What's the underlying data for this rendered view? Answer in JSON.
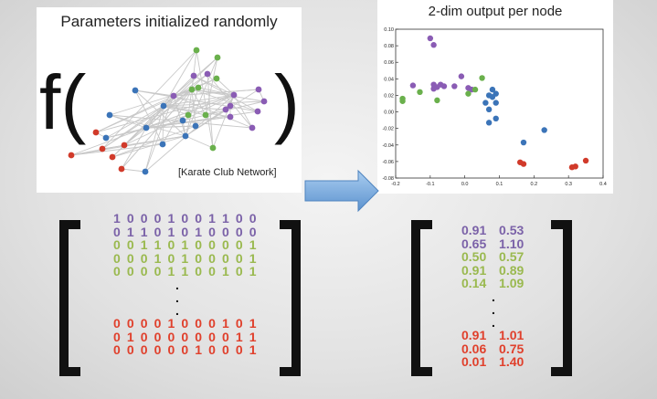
{
  "left_panel": {
    "title": "Parameters initialized randomly",
    "function_open": "f(",
    "function_close": ")",
    "caption": "[Karate Club Network]",
    "node_colors": {
      "purple": "#8a5cb4",
      "green": "#6ab04c",
      "blue": "#3b74b8",
      "red": "#d13a2a"
    }
  },
  "right_panel": {
    "title": "2-dim output per node"
  },
  "chart_data": {
    "type": "scatter",
    "title": "2-dim output per node",
    "xlim": [
      -0.2,
      0.4
    ],
    "ylim": [
      -0.08,
      0.1
    ],
    "xticks": [
      "-0.2",
      "-0.1",
      "0.0",
      "0.1",
      "0.2",
      "0.3",
      "0.4"
    ],
    "yticks": [
      "0.10",
      "0.08",
      "0.06",
      "0.04",
      "0.02",
      "0.00",
      "-0.02",
      "-0.04",
      "-0.06",
      "-0.08"
    ],
    "series": [
      {
        "color": "#8a5cb4",
        "points": [
          [
            -0.1,
            0.089
          ],
          [
            -0.09,
            0.081
          ],
          [
            -0.15,
            0.032
          ],
          [
            -0.09,
            0.033
          ],
          [
            -0.08,
            0.03
          ],
          [
            -0.07,
            0.033
          ],
          [
            -0.06,
            0.031
          ],
          [
            -0.01,
            0.043
          ],
          [
            -0.03,
            0.031
          ],
          [
            0.01,
            0.029
          ],
          [
            -0.09,
            0.028
          ],
          [
            0.02,
            0.027
          ]
        ]
      },
      {
        "color": "#6ab04c",
        "points": [
          [
            -0.18,
            0.016
          ],
          [
            -0.18,
            0.013
          ],
          [
            -0.13,
            0.024
          ],
          [
            -0.08,
            0.014
          ],
          [
            0.01,
            0.022
          ],
          [
            0.05,
            0.041
          ],
          [
            0.03,
            0.027
          ]
        ]
      },
      {
        "color": "#3b74b8",
        "points": [
          [
            0.07,
            0.02
          ],
          [
            0.06,
            0.011
          ],
          [
            0.08,
            0.027
          ],
          [
            0.09,
            0.022
          ],
          [
            0.09,
            0.011
          ],
          [
            0.08,
            0.018
          ],
          [
            0.07,
            0.003
          ],
          [
            0.09,
            -0.008
          ],
          [
            0.07,
            -0.013
          ],
          [
            0.23,
            -0.022
          ],
          [
            0.17,
            -0.037
          ]
        ]
      },
      {
        "color": "#d13a2a",
        "points": [
          [
            0.16,
            -0.061
          ],
          [
            0.17,
            -0.063
          ],
          [
            0.31,
            -0.067
          ],
          [
            0.32,
            -0.066
          ],
          [
            0.35,
            -0.059
          ]
        ]
      }
    ]
  },
  "arrow_color": "#7aaee0",
  "binary_matrix": {
    "rows": [
      {
        "text": "1 0 0 0 1 0 0 1 1 0 0",
        "color": "#7b62a8"
      },
      {
        "text": "0 1 1 0 1 0 1 0 0 0 0",
        "color": "#7b62a8"
      },
      {
        "text": "0 0 1 1 0 1 0 0 0 0 1",
        "color": "#9ab94f"
      },
      {
        "text": "0 0 0 1 0 1 0 0 0 0 1",
        "color": "#9ab94f"
      },
      {
        "text": "0 0 0 0 1 1 0 0 1 0 1",
        "color": "#9ab94f"
      },
      {
        "text": ".",
        "color": "#111111",
        "dot": true
      },
      {
        "text": ".",
        "color": "#111111",
        "dot": true
      },
      {
        "text": ".",
        "color": "#111111",
        "dot": true
      },
      {
        "text": "0 0 0 0 1 0 0 0 1 0 1",
        "color": "#e0402c"
      },
      {
        "text": "0 1 0 0 0 0 0 0 0 1 1",
        "color": "#e0402c"
      },
      {
        "text": "0 0 0 0 0 0 1 0 0 0 1",
        "color": "#e0402c"
      }
    ]
  },
  "embedding_matrix": {
    "rows": [
      {
        "text": "0.91  0.53",
        "color": "#7b62a8"
      },
      {
        "text": "0.65  1.10",
        "color": "#7b62a8"
      },
      {
        "text": "0.50  0.57",
        "color": "#9ab94f"
      },
      {
        "text": "0.91  0.89",
        "color": "#9ab94f"
      },
      {
        "text": "0.14  1.09",
        "color": "#9ab94f"
      },
      {
        "text": ".",
        "color": "#111111",
        "dot": true
      },
      {
        "text": ".",
        "color": "#111111",
        "dot": true
      },
      {
        "text": ".",
        "color": "#111111",
        "dot": true
      },
      {
        "text": "0.91  1.01",
        "color": "#e0402c"
      },
      {
        "text": "0.06  0.75",
        "color": "#e0402c"
      },
      {
        "text": "0.01  1.40",
        "color": "#e0402c"
      }
    ]
  }
}
